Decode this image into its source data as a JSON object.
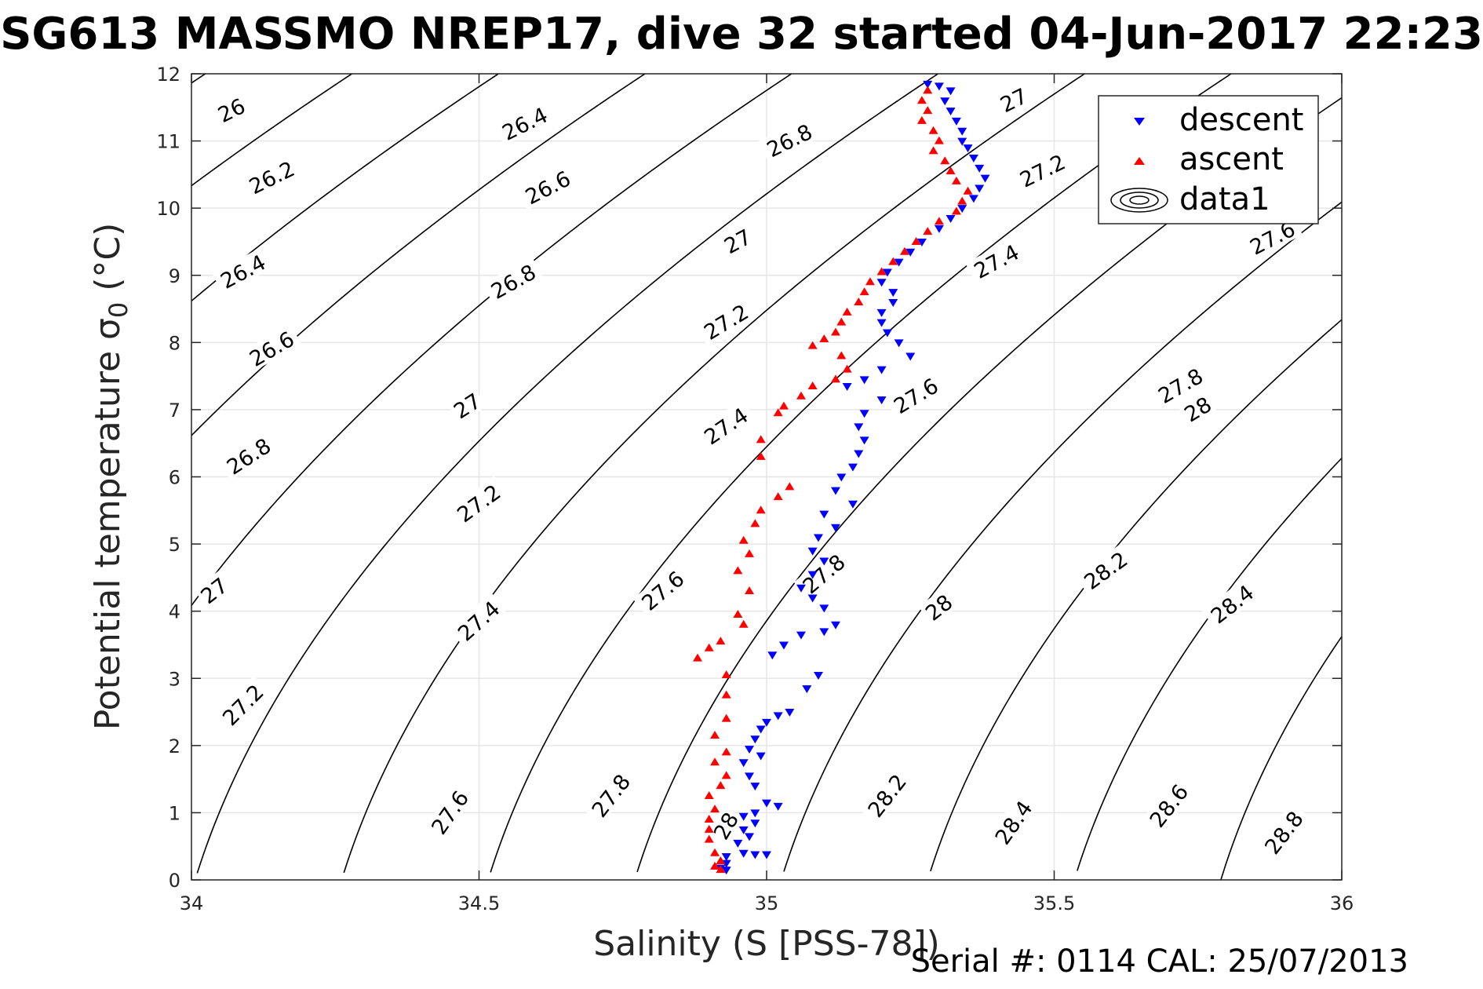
{
  "chart_data": {
    "type": "scatter",
    "title": "SG613 MASSMO NREP17, dive 32 started 04-Jun-2017 22:23",
    "xlabel": "Salinity (S [PSS-78])",
    "ylabel_main": "Potential temperature ",
    "ylabel_sigma": "σ",
    "ylabel_sub": "0",
    "ylabel_unit": " (°C)",
    "xlim": [
      34,
      36
    ],
    "ylim": [
      0,
      12
    ],
    "xticks": [
      34,
      34.5,
      35,
      35.5,
      36
    ],
    "yticks": [
      0,
      1,
      2,
      3,
      4,
      5,
      6,
      7,
      8,
      9,
      10,
      11,
      12
    ],
    "grid": true,
    "legend_position": "top-right",
    "legend": [
      "descent",
      "ascent",
      "data1"
    ],
    "footer": "Serial #: 0114  CAL: 25/07/2013",
    "colors": {
      "descent": "#0000ff",
      "ascent": "#ff0000",
      "contour": "#000000",
      "grid": "#e6e6e6"
    },
    "contour_levels": [
      26,
      26.2,
      26.4,
      26.6,
      26.8,
      27,
      27.2,
      27.4,
      27.6,
      27.8,
      28,
      28.2,
      28.4,
      28.6,
      28.8
    ],
    "contour_labels": [
      {
        "text": "26",
        "s": 34.07,
        "t": 11.45,
        "rot": -26
      },
      {
        "text": "26.2",
        "s": 34.14,
        "t": 10.45,
        "rot": -26
      },
      {
        "text": "26.4",
        "s": 34.09,
        "t": 9.05,
        "rot": -28
      },
      {
        "text": "26.6",
        "s": 34.14,
        "t": 7.9,
        "rot": -30
      },
      {
        "text": "26.8",
        "s": 34.1,
        "t": 6.3,
        "rot": -33
      },
      {
        "text": "27",
        "s": 34.04,
        "t": 4.3,
        "rot": -38
      },
      {
        "text": "27.2",
        "s": 34.09,
        "t": 2.6,
        "rot": -45
      },
      {
        "text": "26.4",
        "s": 34.58,
        "t": 11.25,
        "rot": -26
      },
      {
        "text": "26.6",
        "s": 34.62,
        "t": 10.3,
        "rot": -27
      },
      {
        "text": "26.8",
        "s": 34.56,
        "t": 8.9,
        "rot": -29
      },
      {
        "text": "27",
        "s": 34.48,
        "t": 7.05,
        "rot": -33
      },
      {
        "text": "27.2",
        "s": 34.5,
        "t": 5.6,
        "rot": -36
      },
      {
        "text": "27.4",
        "s": 34.5,
        "t": 3.85,
        "rot": -42
      },
      {
        "text": "27.6",
        "s": 34.45,
        "t": 1.0,
        "rot": -55
      },
      {
        "text": "26.8",
        "s": 35.04,
        "t": 11.0,
        "rot": -26
      },
      {
        "text": "27",
        "s": 34.95,
        "t": 9.5,
        "rot": -28
      },
      {
        "text": "27.2",
        "s": 34.93,
        "t": 8.3,
        "rot": -31
      },
      {
        "text": "27.4",
        "s": 34.93,
        "t": 6.75,
        "rot": -34
      },
      {
        "text": "27.6",
        "s": 34.82,
        "t": 4.3,
        "rot": -40
      },
      {
        "text": "27.8",
        "s": 34.73,
        "t": 1.25,
        "rot": -52
      },
      {
        "text": "28",
        "s": 34.93,
        "t": 0.8,
        "rot": -60
      },
      {
        "text": "27.8",
        "s": 35.1,
        "t": 4.55,
        "rot": -40
      },
      {
        "text": "27",
        "s": 35.43,
        "t": 11.6,
        "rot": -26
      },
      {
        "text": "27.2",
        "s": 35.48,
        "t": 10.55,
        "rot": -26
      },
      {
        "text": "27.4",
        "s": 35.4,
        "t": 9.2,
        "rot": -28
      },
      {
        "text": "27.6",
        "s": 35.26,
        "t": 7.2,
        "rot": -31
      },
      {
        "text": "27.6",
        "s": 35.88,
        "t": 9.55,
        "rot": -27
      },
      {
        "text": "27.8",
        "s": 35.72,
        "t": 7.35,
        "rot": -30
      },
      {
        "text": "28",
        "s": 35.75,
        "t": 7.0,
        "rot": -31
      },
      {
        "text": "28",
        "s": 35.3,
        "t": 4.05,
        "rot": -38
      },
      {
        "text": "28.2",
        "s": 35.59,
        "t": 4.6,
        "rot": -36
      },
      {
        "text": "28.4",
        "s": 35.81,
        "t": 4.1,
        "rot": -38
      },
      {
        "text": "28.2",
        "s": 35.21,
        "t": 1.25,
        "rot": -52
      },
      {
        "text": "28.4",
        "s": 35.43,
        "t": 0.85,
        "rot": -55
      },
      {
        "text": "28.6",
        "s": 35.7,
        "t": 1.1,
        "rot": -52
      },
      {
        "text": "28.8",
        "s": 35.9,
        "t": 0.7,
        "rot": -52
      }
    ],
    "series": [
      {
        "name": "descent",
        "marker": "triangle-down",
        "points": [
          [
            35.28,
            11.85
          ],
          [
            35.3,
            11.82
          ],
          [
            35.32,
            11.75
          ],
          [
            35.31,
            11.6
          ],
          [
            35.32,
            11.45
          ],
          [
            35.33,
            11.3
          ],
          [
            35.34,
            11.15
          ],
          [
            35.34,
            11.0
          ],
          [
            35.35,
            10.9
          ],
          [
            35.36,
            10.75
          ],
          [
            35.37,
            10.6
          ],
          [
            35.38,
            10.45
          ],
          [
            35.37,
            10.3
          ],
          [
            35.36,
            10.15
          ],
          [
            35.34,
            10.0
          ],
          [
            35.32,
            9.85
          ],
          [
            35.3,
            9.7
          ],
          [
            35.27,
            9.5
          ],
          [
            35.25,
            9.35
          ],
          [
            35.23,
            9.2
          ],
          [
            35.21,
            9.05
          ],
          [
            35.2,
            8.9
          ],
          [
            35.22,
            8.75
          ],
          [
            35.22,
            8.6
          ],
          [
            35.2,
            8.45
          ],
          [
            35.2,
            8.3
          ],
          [
            35.21,
            8.15
          ],
          [
            35.23,
            8.0
          ],
          [
            35.25,
            7.8
          ],
          [
            35.2,
            7.6
          ],
          [
            35.17,
            7.45
          ],
          [
            35.14,
            7.35
          ],
          [
            35.2,
            7.15
          ],
          [
            35.17,
            6.95
          ],
          [
            35.16,
            6.75
          ],
          [
            35.17,
            6.55
          ],
          [
            35.16,
            6.35
          ],
          [
            35.15,
            6.15
          ],
          [
            35.13,
            6.0
          ],
          [
            35.12,
            5.8
          ],
          [
            35.15,
            5.6
          ],
          [
            35.1,
            5.45
          ],
          [
            35.12,
            5.25
          ],
          [
            35.09,
            5.1
          ],
          [
            35.08,
            4.9
          ],
          [
            35.1,
            4.75
          ],
          [
            35.08,
            4.55
          ],
          [
            35.06,
            4.35
          ],
          [
            35.08,
            4.2
          ],
          [
            35.1,
            4.05
          ],
          [
            35.12,
            3.8
          ],
          [
            35.1,
            3.7
          ],
          [
            35.06,
            3.65
          ],
          [
            35.03,
            3.5
          ],
          [
            35.01,
            3.35
          ],
          [
            35.09,
            3.05
          ],
          [
            35.07,
            2.85
          ],
          [
            35.04,
            2.5
          ],
          [
            35.02,
            2.45
          ],
          [
            35.0,
            2.35
          ],
          [
            34.99,
            2.25
          ],
          [
            34.98,
            2.1
          ],
          [
            34.97,
            1.95
          ],
          [
            34.99,
            1.85
          ],
          [
            34.96,
            1.75
          ],
          [
            34.97,
            1.55
          ],
          [
            34.98,
            1.4
          ],
          [
            35.0,
            1.15
          ],
          [
            35.02,
            1.1
          ],
          [
            34.98,
            1.0
          ],
          [
            34.96,
            0.95
          ],
          [
            34.98,
            0.85
          ],
          [
            34.96,
            0.75
          ],
          [
            34.97,
            0.65
          ],
          [
            34.95,
            0.55
          ],
          [
            34.96,
            0.4
          ],
          [
            34.98,
            0.38
          ],
          [
            35.0,
            0.38
          ],
          [
            34.93,
            0.35
          ],
          [
            34.93,
            0.25
          ],
          [
            34.92,
            0.18
          ],
          [
            34.93,
            0.15
          ]
        ]
      },
      {
        "name": "ascent",
        "marker": "triangle-up",
        "points": [
          [
            35.28,
            11.75
          ],
          [
            35.27,
            11.6
          ],
          [
            35.28,
            11.45
          ],
          [
            35.27,
            11.3
          ],
          [
            35.29,
            11.15
          ],
          [
            35.3,
            11.0
          ],
          [
            35.29,
            10.85
          ],
          [
            35.31,
            10.7
          ],
          [
            35.32,
            10.55
          ],
          [
            35.33,
            10.4
          ],
          [
            35.35,
            10.25
          ],
          [
            35.34,
            10.1
          ],
          [
            35.33,
            9.95
          ],
          [
            35.3,
            9.8
          ],
          [
            35.28,
            9.65
          ],
          [
            35.26,
            9.5
          ],
          [
            35.24,
            9.35
          ],
          [
            35.22,
            9.2
          ],
          [
            35.2,
            9.05
          ],
          [
            35.18,
            8.9
          ],
          [
            35.17,
            8.75
          ],
          [
            35.16,
            8.6
          ],
          [
            35.14,
            8.45
          ],
          [
            35.13,
            8.3
          ],
          [
            35.12,
            8.15
          ],
          [
            35.1,
            8.05
          ],
          [
            35.08,
            7.95
          ],
          [
            35.13,
            7.8
          ],
          [
            35.14,
            7.6
          ],
          [
            35.12,
            7.45
          ],
          [
            35.08,
            7.35
          ],
          [
            35.06,
            7.2
          ],
          [
            35.03,
            7.05
          ],
          [
            35.02,
            6.95
          ],
          [
            34.99,
            6.55
          ],
          [
            34.99,
            6.3
          ],
          [
            35.04,
            5.85
          ],
          [
            35.02,
            5.7
          ],
          [
            34.99,
            5.5
          ],
          [
            34.98,
            5.3
          ],
          [
            34.96,
            5.05
          ],
          [
            34.97,
            4.85
          ],
          [
            34.95,
            4.6
          ],
          [
            34.97,
            4.3
          ],
          [
            34.95,
            3.95
          ],
          [
            34.96,
            3.8
          ],
          [
            34.92,
            3.55
          ],
          [
            34.9,
            3.45
          ],
          [
            34.88,
            3.3
          ],
          [
            34.93,
            3.05
          ],
          [
            34.93,
            2.75
          ],
          [
            34.93,
            2.4
          ],
          [
            34.91,
            2.15
          ],
          [
            34.93,
            1.9
          ],
          [
            34.91,
            1.75
          ],
          [
            34.93,
            1.55
          ],
          [
            34.92,
            1.4
          ],
          [
            34.9,
            1.25
          ],
          [
            34.91,
            1.05
          ],
          [
            34.9,
            0.9
          ],
          [
            34.9,
            0.75
          ],
          [
            34.9,
            0.6
          ],
          [
            34.91,
            0.4
          ],
          [
            34.92,
            0.28
          ],
          [
            34.91,
            0.2
          ],
          [
            34.92,
            0.15
          ]
        ]
      }
    ]
  }
}
